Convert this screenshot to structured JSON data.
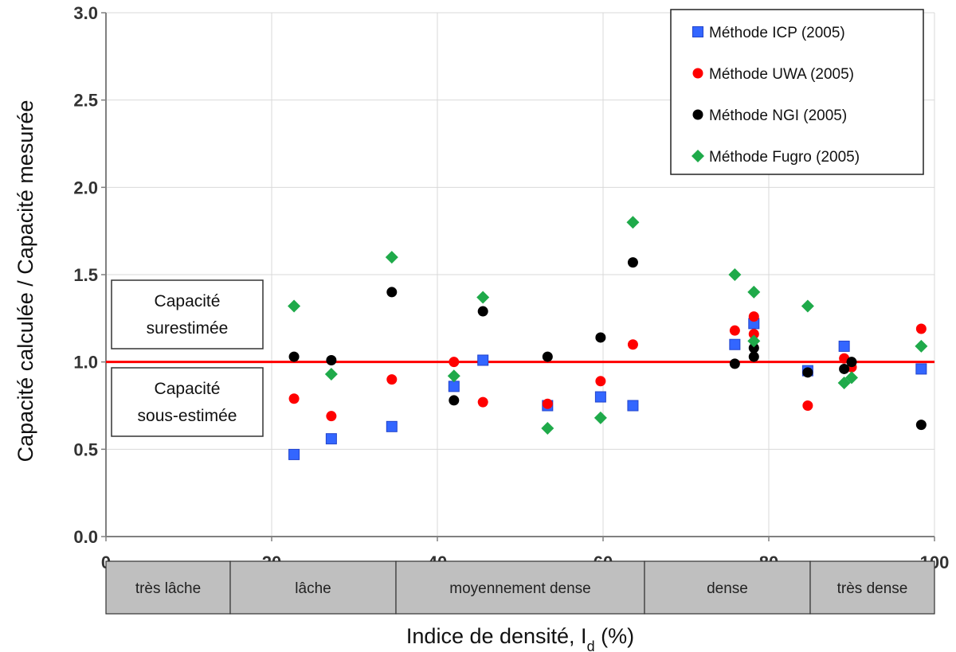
{
  "chart_data": {
    "type": "scatter",
    "xlabel": "Indice de densité, I",
    "xlabel_sub": "d",
    "xlabel_suffix": " (%)",
    "ylabel": "Capacité calculée / Capacité  mesurée",
    "xlim": [
      0,
      100
    ],
    "ylim": [
      0.0,
      3.0
    ],
    "xticks": [
      0,
      20,
      40,
      60,
      80,
      100
    ],
    "yticks": [
      "0.0",
      "0.5",
      "1.0",
      "1.5",
      "2.0",
      "2.5",
      "3.0"
    ],
    "grid": true,
    "legend_position": "top-right",
    "reference_line": {
      "y": 1.0,
      "color": "#ff0000"
    },
    "series": [
      {
        "name": "Méthode ICP (2005)",
        "marker": "square",
        "color": "#3366ff",
        "points": [
          [
            22.7,
            0.47
          ],
          [
            27.2,
            0.56
          ],
          [
            34.5,
            0.63
          ],
          [
            42.0,
            0.86
          ],
          [
            45.5,
            1.01
          ],
          [
            53.3,
            0.75
          ],
          [
            59.7,
            0.8
          ],
          [
            63.6,
            0.75
          ],
          [
            75.9,
            1.1
          ],
          [
            78.2,
            1.22
          ],
          [
            84.7,
            0.95
          ],
          [
            89.1,
            1.09
          ],
          [
            98.4,
            0.96
          ]
        ]
      },
      {
        "name": "Méthode UWA (2005)",
        "marker": "circle",
        "color": "#ff0000",
        "points": [
          [
            22.7,
            0.79
          ],
          [
            27.2,
            0.69
          ],
          [
            34.5,
            0.9
          ],
          [
            42.0,
            1.0
          ],
          [
            45.5,
            0.77
          ],
          [
            53.3,
            0.76
          ],
          [
            59.7,
            0.89
          ],
          [
            63.6,
            1.1
          ],
          [
            75.9,
            1.18
          ],
          [
            78.2,
            1.26
          ],
          [
            78.2,
            1.16
          ],
          [
            84.7,
            0.75
          ],
          [
            89.1,
            1.02
          ],
          [
            90.0,
            0.97
          ],
          [
            98.4,
            1.19
          ]
        ]
      },
      {
        "name": "Méthode NGI (2005)",
        "marker": "circle",
        "color": "#000000",
        "points": [
          [
            22.7,
            1.03
          ],
          [
            27.2,
            1.01
          ],
          [
            34.5,
            1.4
          ],
          [
            42.0,
            0.78
          ],
          [
            45.5,
            1.29
          ],
          [
            53.3,
            1.03
          ],
          [
            59.7,
            1.14
          ],
          [
            63.6,
            1.57
          ],
          [
            75.9,
            0.99
          ],
          [
            78.2,
            1.08
          ],
          [
            78.2,
            1.03
          ],
          [
            84.7,
            0.94
          ],
          [
            89.1,
            0.96
          ],
          [
            90.0,
            1.0
          ],
          [
            98.4,
            0.64
          ]
        ]
      },
      {
        "name": "Méthode Fugro (2005)",
        "marker": "diamond",
        "color": "#1faa4a",
        "points": [
          [
            22.7,
            1.32
          ],
          [
            27.2,
            0.93
          ],
          [
            34.5,
            1.6
          ],
          [
            42.0,
            0.92
          ],
          [
            45.5,
            1.37
          ],
          [
            53.3,
            0.62
          ],
          [
            59.7,
            0.68
          ],
          [
            63.6,
            1.8
          ],
          [
            75.9,
            1.5
          ],
          [
            78.2,
            1.4
          ],
          [
            78.2,
            1.12
          ],
          [
            84.7,
            1.32
          ],
          [
            89.1,
            0.88
          ],
          [
            90.0,
            0.91
          ],
          [
            98.4,
            1.09
          ]
        ]
      }
    ],
    "annotations": [
      {
        "lines": [
          "Capacité",
          "surestimée"
        ]
      },
      {
        "lines": [
          "Capacité",
          "sous-estimée"
        ]
      }
    ],
    "density_categories": [
      {
        "label": "très lâche",
        "from": 0,
        "to": 15
      },
      {
        "label": "lâche",
        "from": 15,
        "to": 35
      },
      {
        "label": "moyennement dense",
        "from": 35,
        "to": 65
      },
      {
        "label": "dense",
        "from": 65,
        "to": 85
      },
      {
        "label": "très dense",
        "from": 85,
        "to": 100
      }
    ],
    "colors": {
      "band_fill": "#bfbfbf",
      "grid": "#d9d9d9",
      "axis": "#808080"
    }
  }
}
